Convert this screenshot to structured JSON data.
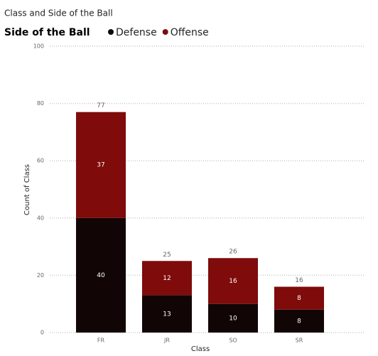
{
  "chart_data": {
    "type": "stacked-bar",
    "title": "Class and Side of the Ball",
    "legend_title": "Side of the Ball",
    "categories": [
      "FR",
      "JR",
      "SO",
      "SR"
    ],
    "series": [
      {
        "name": "Defense",
        "color": "#120505",
        "values": [
          40,
          13,
          10,
          8
        ]
      },
      {
        "name": "Offense",
        "color": "#7f0b0b",
        "values": [
          37,
          12,
          16,
          8
        ]
      }
    ],
    "totals": [
      77,
      25,
      26,
      16
    ],
    "ylim": [
      0,
      100
    ],
    "yticks": [
      0,
      20,
      40,
      60,
      80,
      100
    ],
    "x_label": "Class",
    "y_label": "Count of Class",
    "grid": true
  }
}
